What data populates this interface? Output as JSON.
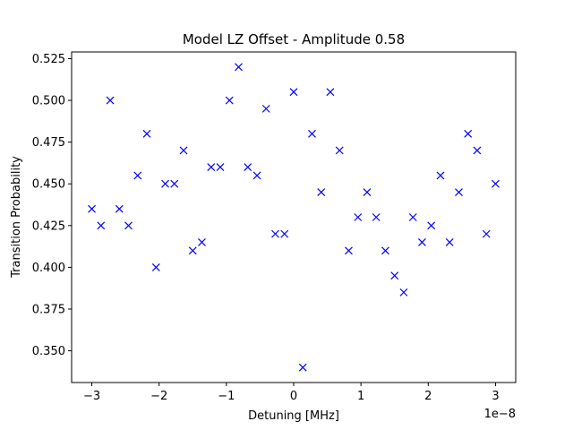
{
  "chart_data": {
    "type": "scatter",
    "title": "Model LZ Offset - Amplitude 0.58",
    "xlabel": "Detuning [MHz]",
    "ylabel": "Transition Probability",
    "x_offset_label": "1e−8",
    "xlim": [
      -3.3,
      3.3
    ],
    "ylim": [
      0.331,
      0.529
    ],
    "x_ticks": [
      -3,
      -2,
      -1,
      0,
      1,
      2,
      3
    ],
    "x_tick_labels": [
      "−3",
      "−2",
      "−1",
      "0",
      "1",
      "2",
      "3"
    ],
    "y_ticks": [
      0.35,
      0.375,
      0.4,
      0.425,
      0.45,
      0.475,
      0.5,
      0.525
    ],
    "y_tick_labels": [
      "0.350",
      "0.375",
      "0.400",
      "0.425",
      "0.450",
      "0.475",
      "0.500",
      "0.525"
    ],
    "grid": false,
    "marker": "x",
    "color": "#0000ff",
    "x": [
      -3.0,
      -2.864,
      -2.727,
      -2.591,
      -2.455,
      -2.318,
      -2.182,
      -2.045,
      -1.909,
      -1.773,
      -1.636,
      -1.5,
      -1.364,
      -1.227,
      -1.091,
      -0.955,
      -0.818,
      -0.682,
      -0.545,
      -0.409,
      -0.273,
      -0.136,
      0.0,
      0.136,
      0.273,
      0.409,
      0.545,
      0.682,
      0.818,
      0.955,
      1.091,
      1.227,
      1.364,
      1.5,
      1.636,
      1.773,
      1.909,
      2.045,
      2.182,
      2.318,
      2.455,
      2.591,
      2.727,
      2.864,
      3.0
    ],
    "y": [
      0.435,
      0.425,
      0.5,
      0.435,
      0.425,
      0.455,
      0.48,
      0.4,
      0.45,
      0.45,
      0.47,
      0.41,
      0.415,
      0.46,
      0.46,
      0.5,
      0.52,
      0.46,
      0.455,
      0.495,
      0.42,
      0.42,
      0.505,
      0.34,
      0.48,
      0.445,
      0.505,
      0.47,
      0.41,
      0.43,
      0.445,
      0.43,
      0.41,
      0.395,
      0.385,
      0.43,
      0.415,
      0.425,
      0.455,
      0.415,
      0.445,
      0.48,
      0.47,
      0.42,
      0.45
    ]
  }
}
